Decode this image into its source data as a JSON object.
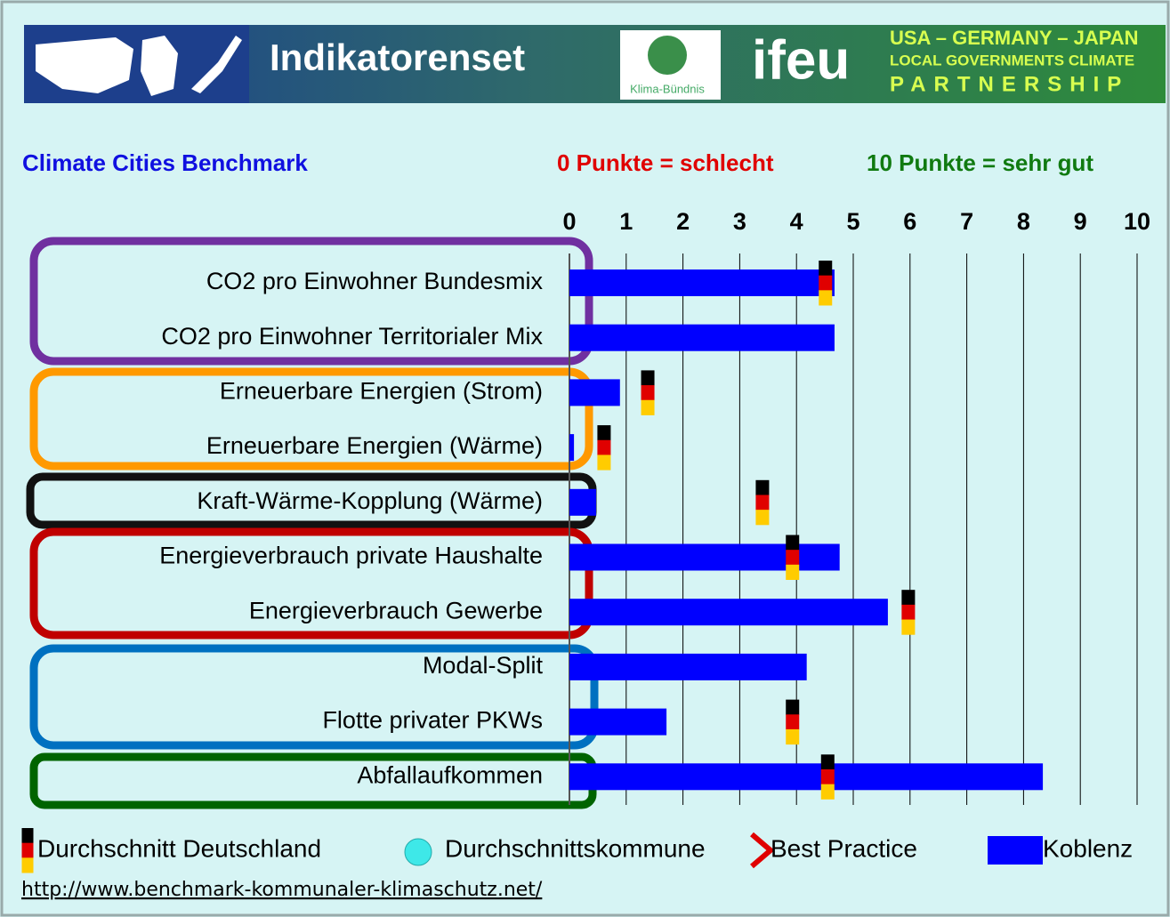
{
  "header": {
    "title": "Indikatorenset",
    "logo_1": "Klima-Bündnis",
    "logo_2": "ifeu",
    "partnership_1": "USA – GERMANY – JAPAN",
    "partnership_2": "LOCAL GOVERNMENTS CLIMATE",
    "partnership_3": "PARTNERSHIP"
  },
  "url": "http://www.benchmark-kommunaler-klimaschutz.net/",
  "chart_data": {
    "type": "bar",
    "title": "Climate Cities Benchmark",
    "scale_low": "0 Punkte = schlecht",
    "scale_high": "10 Punkte = sehr gut",
    "categories": [
      "CO2 pro Einwohner Bundesmix",
      "CO2 pro Einwohner Territorialer Mix",
      "Erneuerbare Energien (Strom)",
      "Erneuerbare Energien (Wärme)",
      "Kraft-Wärme-Kopplung (Wärme)",
      "Energieverbrauch private Haushalte",
      "Energieverbrauch Gewerbe",
      "Modal-Split",
      "Flotte privater PKWs",
      "Abfallaufkommen"
    ],
    "series": [
      {
        "name": "Durchschnitt Deutschland",
        "values": [
          4.51,
          null,
          1.38,
          0.61,
          3.4,
          3.93,
          5.97,
          null,
          3.93,
          4.55
        ]
      },
      {
        "name": "Koblenz",
        "color": "#0000ff",
        "values": [
          4.67,
          4.67,
          0.89,
          0.08,
          0.47,
          4.76,
          5.61,
          4.18,
          1.71,
          8.34
        ]
      }
    ],
    "extra_legend": [
      "Durchschnittskommune",
      "Best Practice"
    ],
    "xlim": [
      0,
      10
    ],
    "xticks": [
      0,
      1,
      2,
      3,
      4,
      5,
      6,
      7,
      8,
      9,
      10
    ],
    "grid": true
  }
}
